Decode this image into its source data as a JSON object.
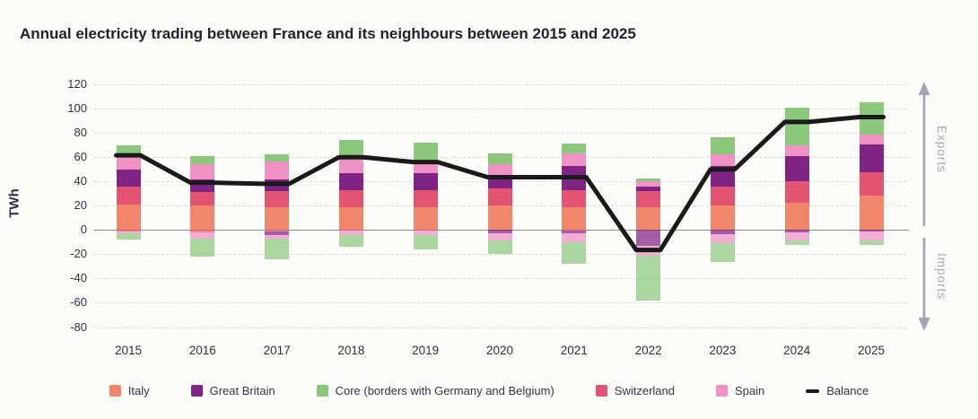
{
  "title": "Annual electricity trading between France and its neighbours between 2015 and 2025",
  "y_axis": {
    "label": "TWh",
    "ticks": [
      120,
      100,
      80,
      60,
      40,
      20,
      0,
      -20,
      -40,
      -60,
      -80
    ]
  },
  "side_labels": {
    "exports": "Exports",
    "imports": "Imports",
    "arrow_color": "#a2a2b8"
  },
  "legend": [
    {
      "label": "Italy",
      "color": "#f0876b",
      "kind": "swatch"
    },
    {
      "label": "Great Britain",
      "color": "#7f2385",
      "kind": "swatch"
    },
    {
      "label": "Core (borders with Germany and Belgium)",
      "color": "#8cc87c",
      "kind": "swatch"
    },
    {
      "label": "Switzerland",
      "color": "#e25472",
      "kind": "swatch"
    },
    {
      "label": "Spain",
      "color": "#ef91c3",
      "kind": "swatch"
    },
    {
      "label": "Balance",
      "color": "#1a1a1a",
      "kind": "dash"
    }
  ],
  "chart_data": {
    "type": "bar",
    "stacked": true,
    "title": "Annual electricity trading between France and its neighbours between 2015 and 2025",
    "xlabel": "",
    "ylabel": "TWh",
    "ylim": [
      -80,
      120
    ],
    "ytick_step": 20,
    "grid": "horizontal-dashed",
    "legend_position": "bottom",
    "units": "TWh",
    "categories": [
      "2015",
      "2016",
      "2017",
      "2018",
      "2019",
      "2020",
      "2021",
      "2022",
      "2023",
      "2024",
      "2025"
    ],
    "series": [
      {
        "name": "Italy",
        "color": "#f0876b",
        "exports": [
          21,
          20.5,
          19,
          18.5,
          19,
          20.5,
          18.5,
          19,
          20.5,
          22.5,
          28
        ],
        "imports": [
          0,
          0,
          0,
          0,
          0,
          0,
          0,
          0,
          0,
          0,
          0
        ]
      },
      {
        "name": "Switzerland",
        "color": "#e25472",
        "exports": [
          14.5,
          10.5,
          13,
          14,
          14,
          14,
          14.5,
          13,
          15.5,
          17.5,
          19.5
        ],
        "imports": [
          1,
          2,
          1.5,
          0.5,
          0.5,
          0,
          0.5,
          0,
          0,
          0,
          0
        ]
      },
      {
        "name": "Great Britain",
        "color": "#7f2385",
        "exports": [
          14.5,
          10.5,
          9.5,
          14,
          14,
          7.5,
          20,
          4,
          17,
          21,
          23
        ],
        "imports": [
          0,
          0,
          2.5,
          0,
          0,
          2.5,
          2.5,
          13,
          3.5,
          2,
          1
        ]
      },
      {
        "name": "Spain",
        "color": "#ef91c3",
        "exports": [
          10,
          13,
          15,
          12,
          10.5,
          12,
          10,
          4.5,
          9.5,
          8.5,
          8
        ],
        "imports": [
          1.5,
          5,
          3,
          4,
          3.5,
          6,
          7,
          8.5,
          7.5,
          6.5,
          7.5
        ]
      },
      {
        "name": "Core (borders with Germany and Belgium)",
        "color": "#8cc87c",
        "exports": [
          9.5,
          6.5,
          5.5,
          15.5,
          14.5,
          9,
          8.5,
          1.5,
          14,
          31.5,
          26.5
        ],
        "imports": [
          5.5,
          15,
          17,
          9.5,
          12,
          11,
          18,
          37,
          15.5,
          3.5,
          3.5
        ]
      }
    ],
    "balance": {
      "name": "Balance",
      "color": "#1a1a1a",
      "values": [
        61.5,
        39,
        38,
        60,
        56,
        43.5,
        43.5,
        -16.5,
        50,
        89,
        93
      ]
    }
  }
}
